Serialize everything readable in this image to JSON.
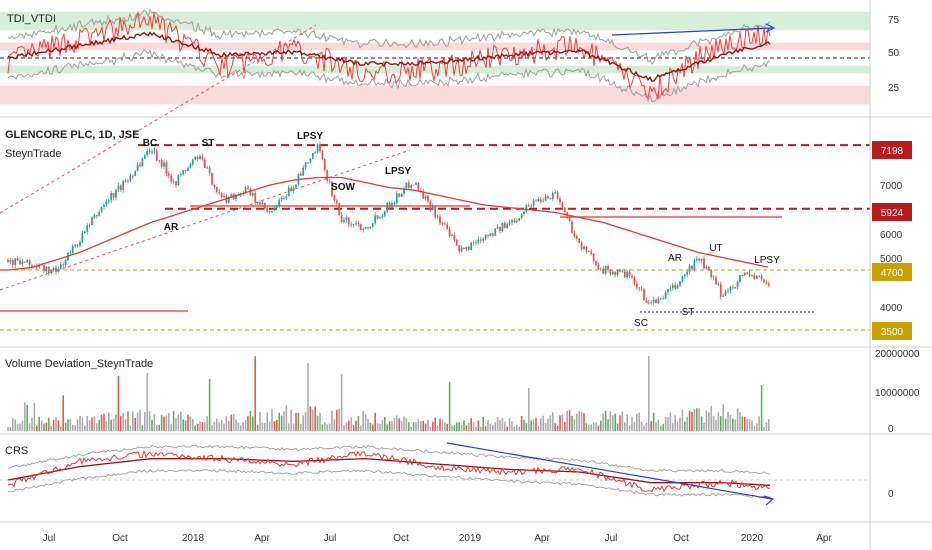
{
  "colors": {
    "price_up": "#26a69a",
    "price_down": "#ef5350",
    "level_dark_red": "#b71c1c",
    "level_gold": "#c8a000",
    "ma_red": "#e53935",
    "trend_blue": "#1e40d6",
    "band_gray": "#9e9e9e",
    "vol_green": "#43a047",
    "vol_red": "#e53935",
    "vol_gray": "#9e9e9e",
    "zone_green": "#d7efd9",
    "zone_red": "#fbdada"
  },
  "x_axis": {
    "ticks": [
      "Jul",
      "Oct",
      "2018",
      "Apr",
      "Jul",
      "Oct",
      "2019",
      "Apr",
      "Jul",
      "Oct",
      "2020",
      "Apr"
    ]
  },
  "panels": {
    "tdi": {
      "title": "TDI_VTDI",
      "ticks": [
        "75",
        "50",
        "25"
      ]
    },
    "main": {
      "title": "GLENCORE PLC, 1D, JSE",
      "subtitle": "SteynTrade",
      "ticks": [
        "7000",
        "6000",
        "5000",
        "4000"
      ],
      "level_labels": [
        "7198",
        "5924",
        "4700",
        "3500"
      ]
    },
    "volume": {
      "title": "Volume Deviation_SteynTrade",
      "ticks": [
        "20000000",
        "10000000",
        "0"
      ]
    },
    "crs": {
      "title": "CRS",
      "ticks": [
        "0"
      ]
    }
  },
  "annotations": {
    "bc": "BC",
    "st1": "ST",
    "lpsy1": "LPSY",
    "ar1": "AR",
    "sow": "SOW",
    "lpsy2": "LPSY",
    "ut": "UT",
    "ar2": "AR",
    "lpsy3": "LPSY",
    "sc": "SC",
    "st2": "ST"
  },
  "chart_data": [
    {
      "type": "line",
      "title": "TDI_VTDI",
      "ylim": [
        15,
        85
      ],
      "levels": [
        75,
        50,
        25
      ],
      "x": [
        "2017-05",
        "2017-08",
        "2017-11",
        "2018-02",
        "2018-05",
        "2018-08",
        "2018-11",
        "2019-02",
        "2019-05",
        "2019-08",
        "2019-11",
        "2020-01"
      ],
      "series": [
        {
          "values": [
            48,
            62,
            74,
            44,
            56,
            40,
            43,
            53,
            57,
            28,
            60,
            65
          ]
        },
        {
          "values": [
            50,
            58,
            66,
            52,
            54,
            46,
            47,
            52,
            55,
            36,
            52,
            60
          ]
        }
      ]
    },
    {
      "type": "line",
      "title": "GLENCORE PLC, 1D, JSE",
      "ylim": [
        3200,
        7700
      ],
      "levels": [
        7198,
        5924,
        4700,
        3500
      ],
      "x": [
        "2017-05",
        "2017-06",
        "2017-07",
        "2017-08",
        "2017-09",
        "2017-10",
        "2017-11",
        "2017-12",
        "2018-01",
        "2018-02",
        "2018-03",
        "2018-04",
        "2018-05",
        "2018-06",
        "2018-07",
        "2018-08",
        "2018-09",
        "2018-10",
        "2018-11",
        "2018-12",
        "2019-01",
        "2019-02",
        "2019-03",
        "2019-04",
        "2019-05",
        "2019-06",
        "2019-07",
        "2019-08",
        "2019-09",
        "2019-10",
        "2019-11",
        "2019-12",
        "2020-01"
      ],
      "series": [
        {
          "values": [
            4900,
            4800,
            4650,
            5300,
            6000,
            6500,
            7150,
            6450,
            7000,
            6100,
            6300,
            5800,
            6400,
            7150,
            5700,
            5550,
            6000,
            6500,
            5800,
            5050,
            5400,
            5600,
            6050,
            6250,
            5200,
            4700,
            4600,
            4000,
            4350,
            4950,
            4200,
            4650,
            4400
          ]
        },
        {
          "values": [
            4700,
            4750,
            4900,
            5050,
            5250,
            5450,
            5650,
            5800,
            5950,
            6100,
            6250,
            6400,
            6500,
            6550,
            6550,
            6450,
            6350,
            6300,
            6200,
            6100,
            6000,
            5950,
            5900,
            5850,
            5750,
            5650,
            5500,
            5350,
            5200,
            5050,
            4950,
            4850,
            4750
          ]
        }
      ]
    },
    {
      "type": "bar",
      "title": "Volume Deviation_SteynTrade",
      "ylim": [
        0,
        20000000
      ],
      "x": [
        "2017-05",
        "2017-08",
        "2017-11",
        "2018-02",
        "2018-05",
        "2018-08",
        "2018-11",
        "2019-02",
        "2019-05",
        "2019-08",
        "2019-11",
        "2020-01"
      ],
      "values": [
        3000000,
        4000000,
        5000000,
        3500000,
        6000000,
        4500000,
        3000000,
        3500000,
        5000000,
        4000000,
        6500000,
        3000000
      ]
    },
    {
      "type": "line",
      "title": "CRS",
      "ylim": [
        -1.5,
        1.5
      ],
      "levels": [
        0
      ],
      "x": [
        "2017-05",
        "2017-08",
        "2017-11",
        "2018-02",
        "2018-05",
        "2018-08",
        "2018-11",
        "2019-02",
        "2019-05",
        "2019-08",
        "2019-11",
        "2020-01"
      ],
      "series": [
        {
          "values": [
            -0.2,
            0.7,
            1.0,
            0.8,
            0.6,
            1.0,
            0.5,
            0.3,
            0.4,
            -0.4,
            -0.1,
            -0.3
          ]
        },
        {
          "values": [
            0.0,
            0.5,
            0.8,
            0.8,
            0.7,
            0.8,
            0.6,
            0.4,
            0.3,
            -0.1,
            -0.1,
            -0.2
          ]
        }
      ]
    }
  ]
}
